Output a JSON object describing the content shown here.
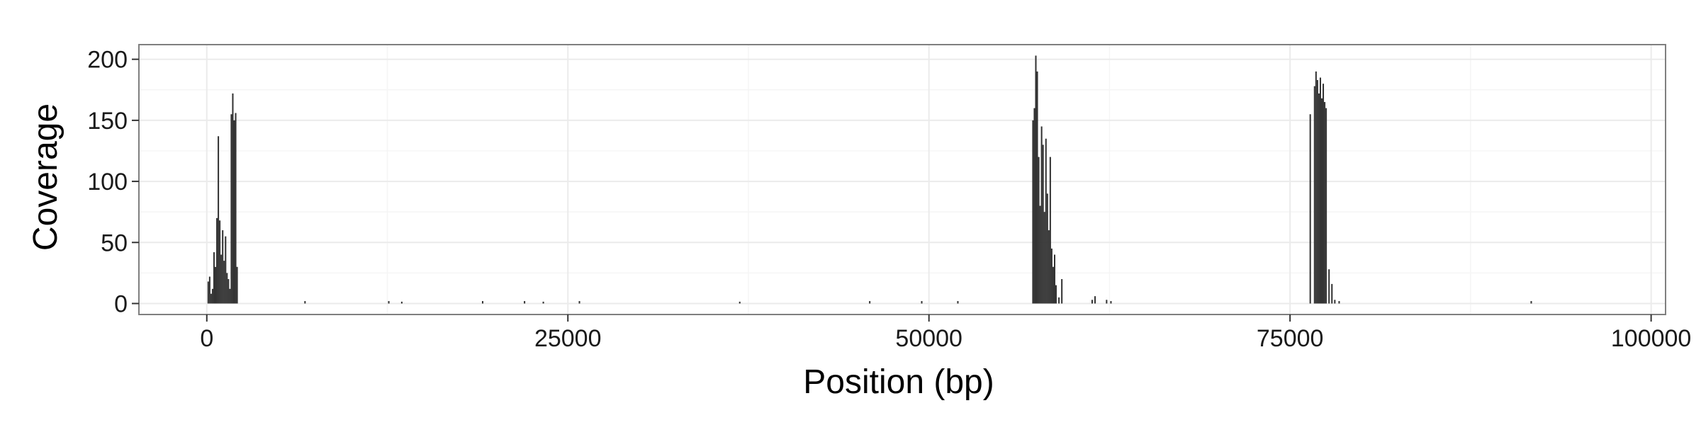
{
  "chart_data": {
    "type": "bar",
    "xlabel": "Position (bp)",
    "ylabel": "Coverage",
    "xlim": [
      -4700,
      101000
    ],
    "ylim": [
      -9,
      212
    ],
    "x_ticks": [
      0,
      25000,
      50000,
      75000,
      100000
    ],
    "x_tick_labels": [
      "0",
      "25000",
      "50000",
      "75000",
      "100000"
    ],
    "y_ticks": [
      0,
      50,
      100,
      150,
      200
    ],
    "y_tick_labels": [
      "0",
      "50",
      "100",
      "150",
      "200"
    ],
    "grid": true,
    "colors": {
      "bars": "#333333",
      "panel_border": "#7f7f7f",
      "grid_major": "#ebebeb",
      "grid_minor": "#f5f5f5"
    },
    "bin_width": 100,
    "series": [
      {
        "values": [
          [
            100,
            18
          ],
          [
            200,
            22
          ],
          [
            300,
            8
          ],
          [
            400,
            12
          ],
          [
            500,
            42
          ],
          [
            600,
            30
          ],
          [
            700,
            70
          ],
          [
            800,
            137
          ],
          [
            900,
            68
          ],
          [
            1000,
            40
          ],
          [
            1100,
            60
          ],
          [
            1200,
            35
          ],
          [
            1300,
            55
          ],
          [
            1400,
            25
          ],
          [
            1500,
            20
          ],
          [
            1600,
            12
          ],
          [
            1700,
            155
          ],
          [
            1800,
            172
          ],
          [
            1900,
            150
          ],
          [
            2000,
            156
          ],
          [
            2100,
            30
          ],
          [
            6800,
            2
          ],
          [
            12600,
            2
          ],
          [
            13500,
            1.5
          ],
          [
            19100,
            2
          ],
          [
            22000,
            2
          ],
          [
            23300,
            1.5
          ],
          [
            25800,
            2
          ],
          [
            36900,
            1.5
          ],
          [
            45900,
            2
          ],
          [
            49500,
            2
          ],
          [
            52000,
            2
          ],
          [
            57200,
            150
          ],
          [
            57300,
            160
          ],
          [
            57400,
            203
          ],
          [
            57500,
            190
          ],
          [
            57600,
            120
          ],
          [
            57700,
            80
          ],
          [
            57800,
            145
          ],
          [
            57900,
            130
          ],
          [
            58000,
            75
          ],
          [
            58100,
            135
          ],
          [
            58200,
            90
          ],
          [
            58300,
            60
          ],
          [
            58400,
            120
          ],
          [
            58500,
            45
          ],
          [
            58600,
            30
          ],
          [
            58700,
            40
          ],
          [
            58800,
            15
          ],
          [
            59000,
            5
          ],
          [
            59200,
            20
          ],
          [
            61300,
            3
          ],
          [
            61500,
            6
          ],
          [
            62300,
            3
          ],
          [
            62600,
            2
          ],
          [
            76400,
            155
          ],
          [
            76700,
            178
          ],
          [
            76800,
            190
          ],
          [
            76900,
            183
          ],
          [
            77000,
            172
          ],
          [
            77100,
            185
          ],
          [
            77200,
            168
          ],
          [
            77300,
            180
          ],
          [
            77400,
            165
          ],
          [
            77500,
            160
          ],
          [
            77700,
            28
          ],
          [
            77900,
            16
          ],
          [
            78100,
            3
          ],
          [
            78400,
            2
          ],
          [
            91700,
            2
          ]
        ]
      }
    ]
  }
}
